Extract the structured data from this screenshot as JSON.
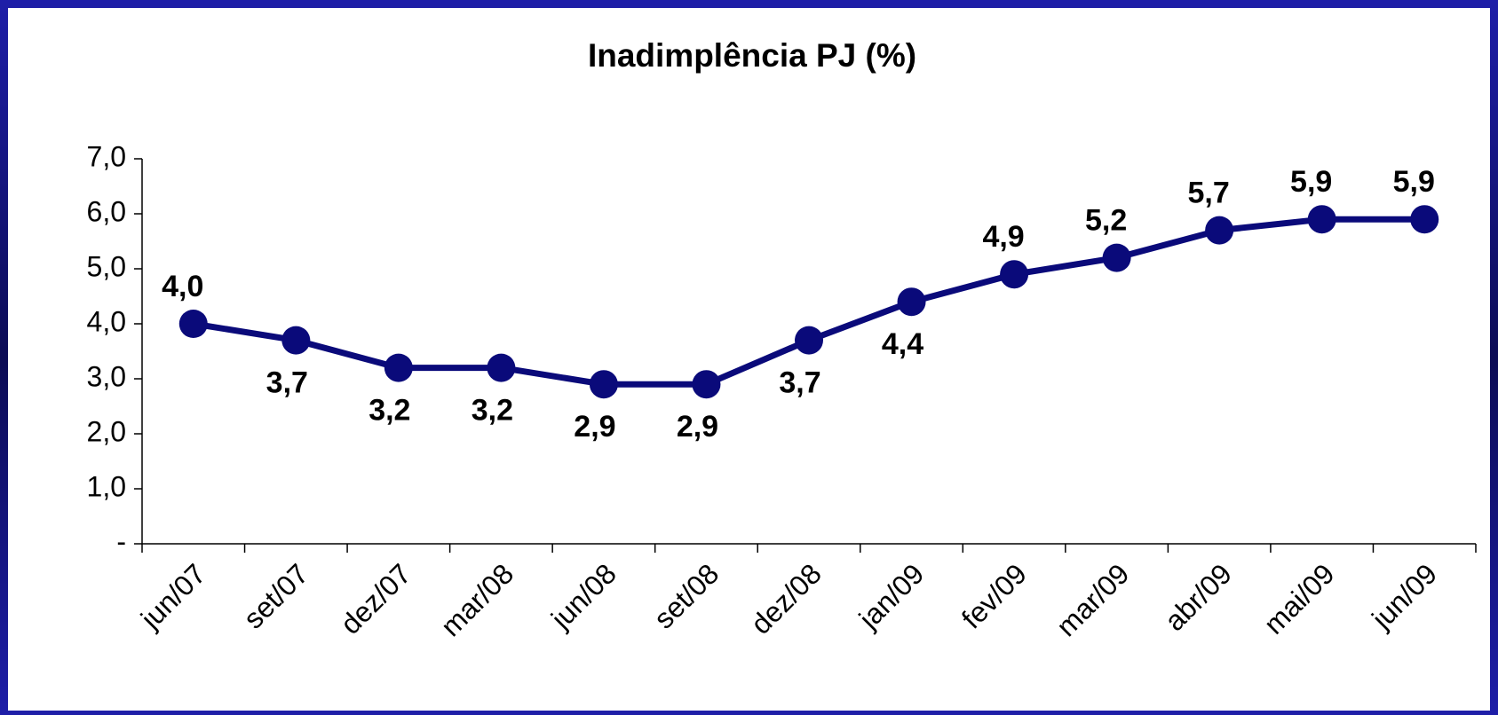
{
  "chart_data": {
    "type": "line",
    "title": "Inadimplência PJ (%)",
    "categories": [
      "jun/07",
      "set/07",
      "dez/07",
      "mar/08",
      "jun/08",
      "set/08",
      "dez/08",
      "jan/09",
      "fev/09",
      "mar/09",
      "abr/09",
      "mai/09",
      "jun/09"
    ],
    "series": [
      {
        "name": "Inadimplência PJ",
        "color": "#0a0a7a",
        "values": [
          4.0,
          3.7,
          3.2,
          3.2,
          2.9,
          2.9,
          3.7,
          4.4,
          4.9,
          5.2,
          5.7,
          5.9,
          5.9
        ],
        "value_labels": [
          "4,0",
          "3,7",
          "3,2",
          "3,2",
          "2,9",
          "2,9",
          "3,7",
          "4,4",
          "4,9",
          "5,2",
          "5,7",
          "5,9",
          "5,9"
        ]
      }
    ],
    "ylim": [
      0,
      7
    ],
    "yticks": [
      {
        "value": 0,
        "label": "-"
      },
      {
        "value": 1,
        "label": "1,0"
      },
      {
        "value": 2,
        "label": "2,0"
      },
      {
        "value": 3,
        "label": "3,0"
      },
      {
        "value": 4,
        "label": "4,0"
      },
      {
        "value": 5,
        "label": "5,0"
      },
      {
        "value": 6,
        "label": "6,0"
      },
      {
        "value": 7,
        "label": "7,0"
      }
    ]
  }
}
